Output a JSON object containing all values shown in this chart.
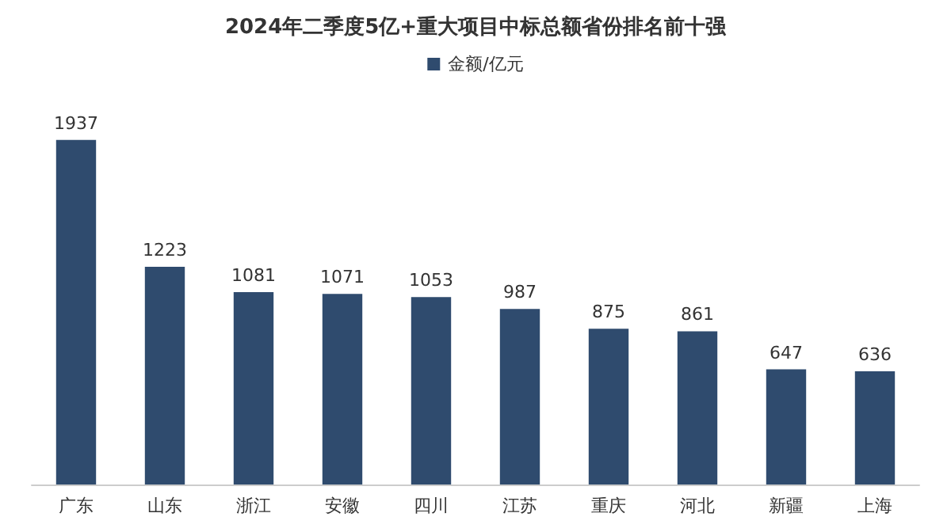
{
  "chart_data": {
    "type": "bar",
    "title": "2024年二季度5亿+重大项目中标总额省份排名前十强",
    "categories": [
      "广东",
      "山东",
      "浙江",
      "安徽",
      "四川",
      "江苏",
      "重庆",
      "河北",
      "新疆",
      "上海"
    ],
    "series": [
      {
        "name": "金额/亿元",
        "color": "#2f4b6e",
        "values": [
          1937,
          1223,
          1081,
          1071,
          1053,
          987,
          875,
          861,
          647,
          636
        ]
      }
    ],
    "data_labels": true,
    "legend": "top"
  }
}
